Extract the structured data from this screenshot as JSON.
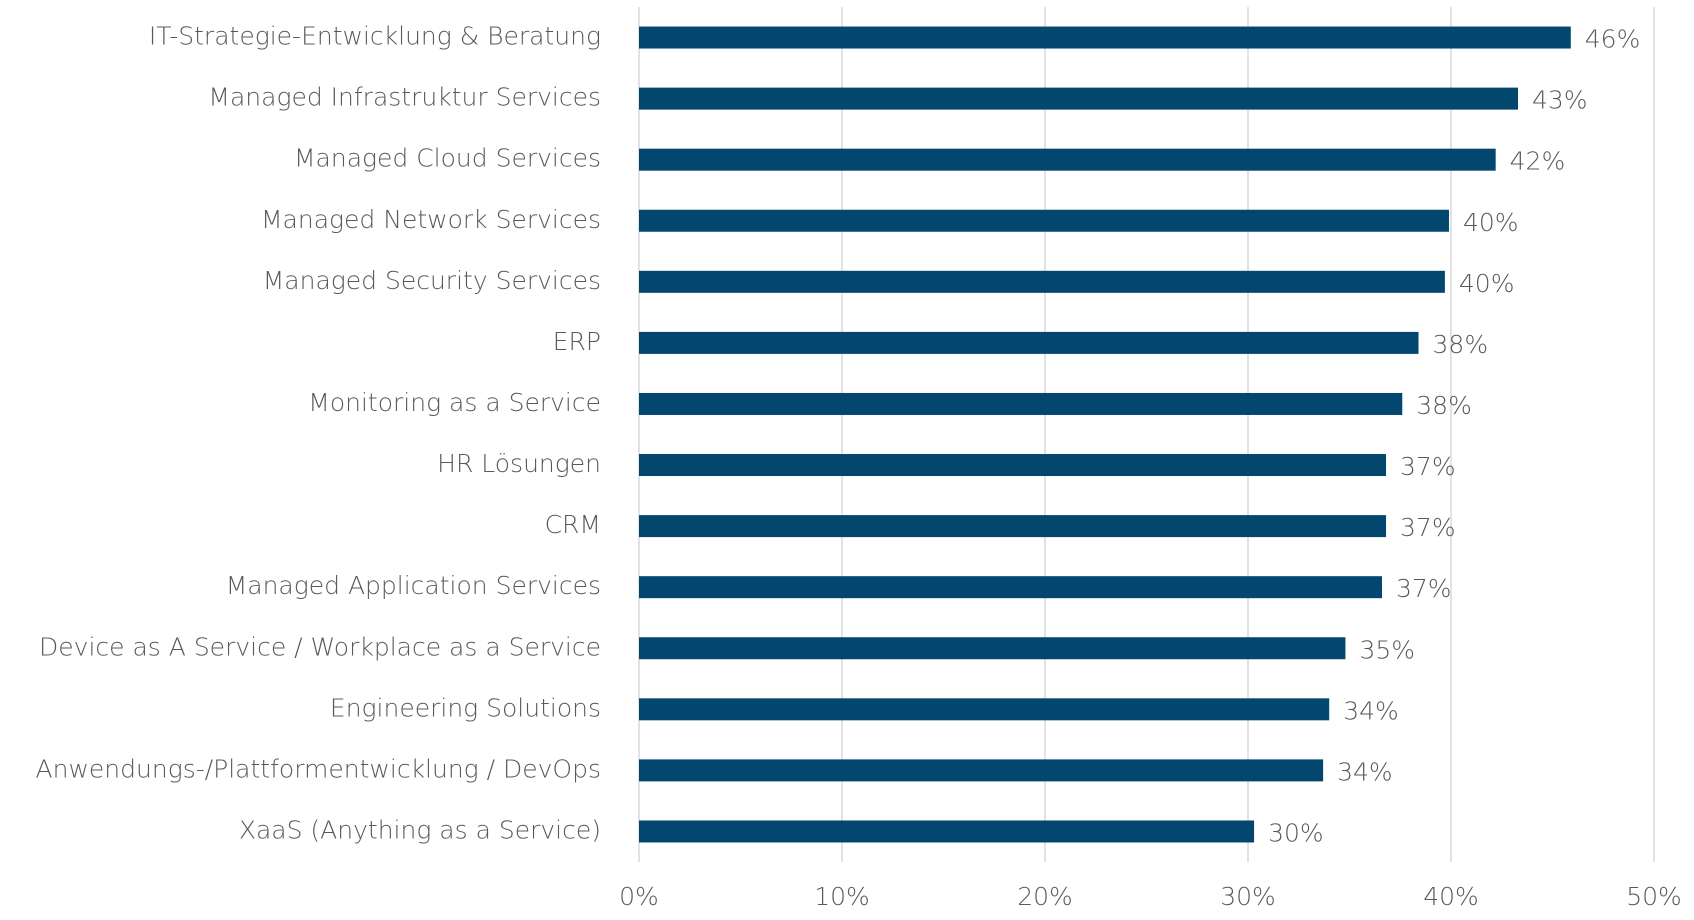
{
  "chart_data": {
    "type": "bar",
    "orientation": "horizontal",
    "categories": [
      "IT-Strategie-Entwicklung & Beratung",
      "Managed Infrastruktur Services",
      "Managed Cloud Services",
      "Managed Network Services",
      "Managed Security Services",
      "ERP",
      "Monitoring as a Service",
      "HR Lösungen",
      "CRM",
      "Managed Application Services",
      "Device as A Service / Workplace as a Service",
      "Engineering Solutions",
      "Anwendungs-/Plattformentwicklung / DevOps",
      "XaaS (Anything as a Service)"
    ],
    "values": [
      45.9,
      43.3,
      42.2,
      39.9,
      39.7,
      38.4,
      37.6,
      36.8,
      36.8,
      36.6,
      34.8,
      34.0,
      33.7,
      30.3
    ],
    "value_labels": [
      "46%",
      "43%",
      "42%",
      "40%",
      "40%",
      "38%",
      "38%",
      "37%",
      "37%",
      "37%",
      "35%",
      "34%",
      "34%",
      "30%"
    ],
    "color": "#03466e",
    "xlim": [
      0,
      50
    ],
    "xticks": [
      {
        "value": 0,
        "label": "0%"
      },
      {
        "value": 10,
        "label": "10%"
      },
      {
        "value": 20,
        "label": "20%"
      },
      {
        "value": 30,
        "label": "30%"
      },
      {
        "value": 40,
        "label": "40%"
      },
      {
        "value": 50,
        "label": "50%"
      }
    ],
    "grid": true
  }
}
